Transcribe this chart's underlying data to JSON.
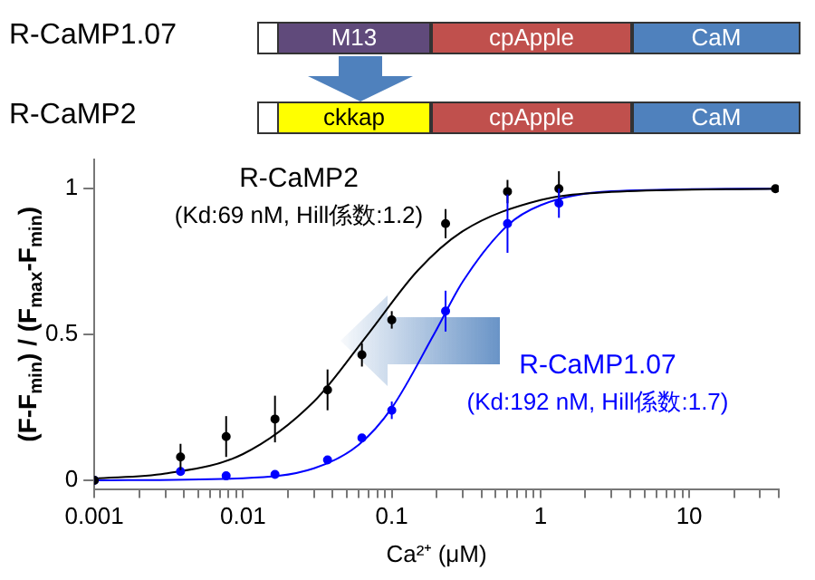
{
  "chart_data": {
    "type": "scatter",
    "xlabel": "Ca²⁺ (μM)",
    "ylabel": "(F-F$_{min}$) / (F$_{max}$-F$_{min}$)",
    "log": "x",
    "xlim": [
      0.001,
      40
    ],
    "xticks": [
      0.001,
      {
        "value": 0.002,
        "label": null
      },
      {
        "value": 0.003,
        "label": null
      },
      {
        "value": 0.004,
        "label": null
      },
      {
        "value": 0.005,
        "label": null
      },
      {
        "value": 0.006,
        "label": null
      },
      {
        "value": 0.007,
        "label": null
      },
      {
        "value": 0.008,
        "label": null
      },
      {
        "value": 0.009,
        "label": null
      },
      0.01,
      {
        "value": 0.02,
        "label": null
      },
      {
        "value": 0.03,
        "label": null
      },
      {
        "value": 0.04,
        "label": null
      },
      {
        "value": 0.05,
        "label": null
      },
      {
        "value": 0.06,
        "label": null
      },
      {
        "value": 0.07,
        "label": null
      },
      {
        "value": 0.08,
        "label": null
      },
      {
        "value": 0.09,
        "label": null
      },
      0.1,
      {
        "value": 0.2,
        "label": null
      },
      {
        "value": 0.3,
        "label": null
      },
      {
        "value": 0.4,
        "label": null
      },
      {
        "value": 0.5,
        "label": null
      },
      {
        "value": 0.6,
        "label": null
      },
      {
        "value": 0.7,
        "label": null
      },
      {
        "value": 0.8,
        "label": null
      },
      {
        "value": 0.9,
        "label": null
      },
      1,
      {
        "value": 2,
        "label": null
      },
      {
        "value": 3,
        "label": null
      },
      {
        "value": 4,
        "label": null
      },
      {
        "value": 5,
        "label": null
      },
      {
        "value": 6,
        "label": null
      },
      {
        "value": 7,
        "label": null
      },
      {
        "value": 8,
        "label": null
      },
      {
        "value": 9,
        "label": null
      },
      10,
      {
        "value": 20,
        "label": null
      },
      {
        "value": 30,
        "label": null
      },
      {
        "value": 40,
        "label": null
      }
    ],
    "ylim": [
      -0.03,
      1.1
    ],
    "yticks": [
      0,
      0.5,
      1
    ],
    "grid": false,
    "legend": false,
    "marker": "circle",
    "series": [
      {
        "type": "line",
        "marker": "none",
        "color": "#000000",
        "x": [
          0.001,
          0.003,
          0.01,
          0.03,
          0.069,
          0.15,
          0.3,
          1,
          3,
          38
        ],
        "values": [
          0.006,
          0.023,
          0.09,
          0.27,
          0.5,
          0.72,
          0.854,
          0.961,
          0.989,
          1.0
        ]
      },
      {
        "type": "line",
        "marker": "none",
        "color": "#0000ff",
        "x": [
          0.001,
          0.01,
          0.03,
          0.06,
          0.1,
          0.192,
          0.3,
          0.6,
          1,
          3,
          38
        ],
        "values": [
          0.0,
          0.007,
          0.041,
          0.122,
          0.248,
          0.5,
          0.681,
          0.874,
          0.943,
          0.991,
          1.0
        ]
      },
      {
        "name": "R-CaMP2",
        "color": "#000000",
        "x": [
          0.001,
          0.0038,
          0.0077,
          0.0164,
          0.037,
          0.063,
          0.1,
          0.23,
          0.6,
          1.33,
          38
        ],
        "values": [
          0.0,
          0.08,
          0.15,
          0.21,
          0.31,
          0.43,
          0.55,
          0.88,
          0.99,
          1.0,
          1.0
        ],
        "errors": [
          null,
          0.045,
          0.07,
          0.08,
          0.07,
          0.04,
          0.03,
          0.05,
          0.04,
          0.06,
          null
        ]
      },
      {
        "name": "R-CaMP1.07",
        "color": "#0000ff",
        "x": [
          0.001,
          0.0038,
          0.0077,
          0.0164,
          0.037,
          0.063,
          0.1,
          0.23,
          0.6,
          1.33
        ],
        "values": [
          0.0,
          0.03,
          0.015,
          0.02,
          0.07,
          0.145,
          0.24,
          0.58,
          0.88,
          0.95
        ],
        "errors": [
          null,
          null,
          null,
          null,
          null,
          null,
          0.03,
          0.07,
          0.1,
          0.05
        ]
      }
    ],
    "annotations": [
      "R-CaMP1.07",
      "M13",
      "cpApple",
      "CaM",
      "R-CaMP2",
      "ckkap",
      "cpApple",
      "CaM",
      "(Kd:69 nM, Hill係数:1.2)",
      "(Kd:192 nM, Hill係数:1.7)"
    ]
  }
}
